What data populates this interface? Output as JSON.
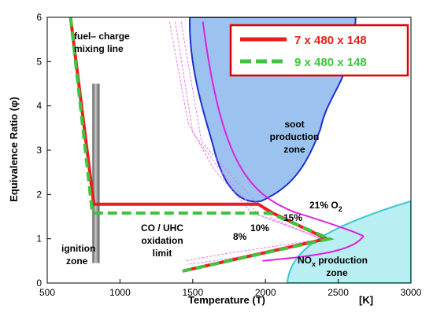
{
  "chart_data": {
    "type": "line",
    "xlabel": "Temperature (T)",
    "xunit": "[K]",
    "ylabel": "Equivalence Ratio (φ)",
    "xlim": [
      500,
      3000
    ],
    "ylim": [
      0,
      6
    ],
    "xticks": [
      "500",
      "1000",
      "1500",
      "2000",
      "2500",
      "3000"
    ],
    "yticks": [
      "0",
      "1",
      "2",
      "3",
      "4",
      "5",
      "6"
    ],
    "grid": false,
    "legend_position": "top-right",
    "colors": {
      "series_red": "#ee1c1c",
      "series_green": "#3ec43e",
      "soot_fill": "#9cc3ef",
      "soot_edge": "#1d2fd0",
      "nox_fill": "#b9eef2",
      "nox_edge": "#3cc8d2",
      "magenta": "#e020e0",
      "pink_dash": "#e878e8",
      "legend_border": "#e00000"
    },
    "series": [
      {
        "name": "7 x 480 x 148",
        "style": "solid",
        "x": [
          660,
          820,
          1950,
          2050,
          2420,
          1430
        ],
        "y": [
          6.0,
          1.78,
          1.78,
          1.58,
          1.0,
          0.27
        ]
      },
      {
        "name": "9 x 480 x 148",
        "style": "dashed",
        "x": [
          660,
          810,
          2030,
          2440,
          1430
        ],
        "y": [
          6.0,
          1.58,
          1.58,
          1.0,
          0.27
        ]
      }
    ],
    "regions": [
      {
        "label": [
          "soot",
          "production",
          "zone"
        ]
      },
      {
        "label_main": "NO",
        "label_sub": "x",
        "label_rest": " production",
        "label_line2": "zone"
      }
    ],
    "o2_curves": [
      {
        "label": "21% O",
        "label_sub": "2"
      },
      {
        "label": "15%"
      },
      {
        "label": "10%"
      },
      {
        "label": "8%"
      }
    ],
    "annotations": {
      "mixing_line_1": "fuel– charge",
      "mixing_line_2": "mixing line",
      "oxidation_1": "CO / UHC",
      "oxidation_2": "oxidation",
      "oxidation_3": "limit",
      "ignition_1": "ignition",
      "ignition_2": "zone"
    }
  }
}
